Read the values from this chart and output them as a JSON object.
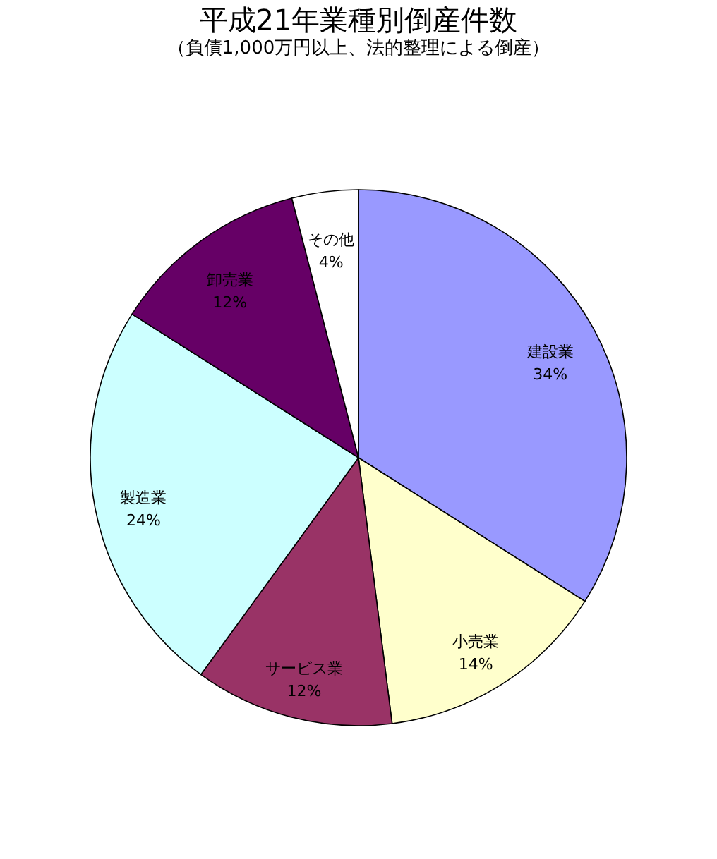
{
  "chart_data": {
    "type": "pie",
    "title": "平成21年業種別倒産件数",
    "subtitle": "（負債1,000万円以上、法的整理による倒産）",
    "categories": [
      "建設業",
      "小売業",
      "サービス業",
      "製造業",
      "卸売業",
      "その他"
    ],
    "values": [
      34,
      14,
      12,
      24,
      12,
      4
    ],
    "value_labels": [
      "34%",
      "14%",
      "12%",
      "24%",
      "12%",
      "4%"
    ],
    "colors": [
      "#9999ff",
      "#ffffcc",
      "#993366",
      "#ccffff",
      "#660066",
      "#ffffff"
    ],
    "legend": false
  }
}
